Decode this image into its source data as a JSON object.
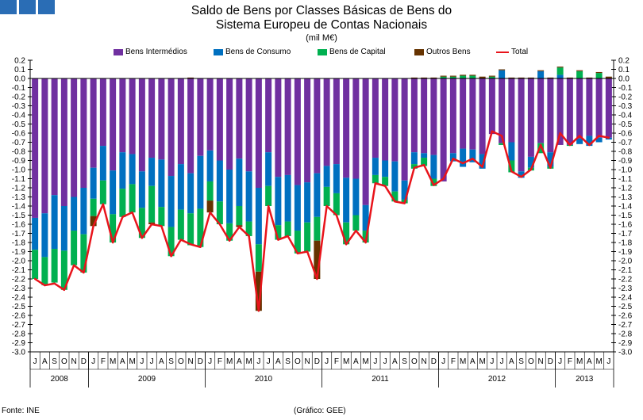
{
  "header": {
    "title_line1": "Saldo de Bens por Classes Básicas de Bens do",
    "title_line2": "Sistema Europeu de Contas Nacionais",
    "unit": "(mil M€)"
  },
  "footer": {
    "source": "Fonte: INE",
    "credit": "(Gráfico: GEE)"
  },
  "chart_data": {
    "type": "bar",
    "stacked": true,
    "title": "Saldo de Bens por Classes Básicas de Bens do Sistema Europeu de Contas Nacionais",
    "ylabel": "(mil M€)",
    "ylim": [
      -3.0,
      0.2
    ],
    "ytick_step": 0.1,
    "legend_position": "top",
    "categories": [
      "J",
      "A",
      "S",
      "O",
      "N",
      "D",
      "J",
      "F",
      "M",
      "A",
      "M",
      "J",
      "J",
      "A",
      "S",
      "O",
      "N",
      "D",
      "J",
      "F",
      "M",
      "A",
      "M",
      "J",
      "J",
      "A",
      "S",
      "O",
      "N",
      "D",
      "J",
      "F",
      "M",
      "A",
      "M",
      "J",
      "J",
      "A",
      "S",
      "O",
      "N",
      "D",
      "J",
      "F",
      "M",
      "A",
      "M",
      "J",
      "J",
      "A",
      "S",
      "O",
      "N",
      "D",
      "J",
      "F",
      "M",
      "A",
      "M",
      "J"
    ],
    "year_groups": [
      {
        "label": "2008",
        "count": 6
      },
      {
        "label": "2009",
        "count": 12
      },
      {
        "label": "2010",
        "count": 12
      },
      {
        "label": "2011",
        "count": 12
      },
      {
        "label": "2012",
        "count": 12
      },
      {
        "label": "2013",
        "count": 6
      }
    ],
    "series": [
      {
        "name": "Bens Intermédios",
        "color": "#7030a0",
        "values": [
          -1.53,
          -1.48,
          -1.28,
          -1.4,
          -1.3,
          -1.2,
          -0.98,
          -0.74,
          -1.01,
          -0.81,
          -0.83,
          -1.02,
          -0.87,
          -0.89,
          -1.07,
          -0.94,
          -1.04,
          -0.85,
          -0.79,
          -0.9,
          -1.0,
          -0.88,
          -1.02,
          -1.2,
          -0.81,
          -1.08,
          -1.06,
          -1.17,
          -1.14,
          -1.04,
          -0.96,
          -0.94,
          -1.09,
          -1.1,
          -1.39,
          -0.87,
          -0.9,
          -0.91,
          -1.12,
          -0.81,
          -0.82,
          -0.84,
          -1.13,
          -0.82,
          -0.77,
          -0.78,
          -0.83,
          -0.61,
          -0.71,
          -0.7,
          -1.02,
          -0.86,
          -0.71,
          -0.81,
          -0.73,
          -0.73,
          -0.66,
          -0.63,
          -0.65,
          -0.65
        ]
      },
      {
        "name": "Bens de Consumo",
        "color": "#0070c0",
        "values": [
          -0.35,
          -0.48,
          -0.59,
          -0.49,
          -0.37,
          -0.51,
          -0.34,
          -0.38,
          -0.48,
          -0.4,
          -0.33,
          -0.4,
          -0.31,
          -0.52,
          -0.56,
          -0.5,
          -0.44,
          -0.58,
          -0.34,
          -0.45,
          -0.59,
          -0.52,
          -0.55,
          -0.62,
          -0.37,
          -0.53,
          -0.51,
          -0.5,
          -0.44,
          -0.48,
          -0.23,
          -0.32,
          -0.49,
          -0.4,
          -0.28,
          -0.19,
          -0.18,
          -0.33,
          -0.21,
          -0.13,
          -0.05,
          -0.26,
          0,
          -0.09,
          -0.2,
          -0.14,
          -0.16,
          0,
          0.09,
          -0.2,
          -0.07,
          -0.12,
          0.08,
          -0.16,
          0.04,
          0,
          -0.06,
          -0.11,
          -0.05,
          -0.02
        ]
      },
      {
        "name": "Bens de Capital",
        "color": "#00b050",
        "values": [
          -0.32,
          -0.31,
          -0.37,
          -0.43,
          -0.38,
          -0.42,
          -0.19,
          -0.26,
          -0.31,
          -0.31,
          -0.31,
          -0.33,
          -0.4,
          -0.21,
          -0.32,
          -0.33,
          -0.35,
          -0.42,
          -0.21,
          -0.25,
          -0.19,
          -0.21,
          -0.16,
          -0.3,
          -0.22,
          -0.16,
          -0.16,
          -0.25,
          -0.32,
          -0.26,
          -0.21,
          -0.24,
          -0.24,
          -0.17,
          -0.13,
          -0.09,
          -0.1,
          -0.11,
          -0.04,
          -0.05,
          -0.09,
          -0.08,
          0.02,
          0.02,
          0.03,
          0.03,
          0,
          0.02,
          -0.02,
          -0.13,
          0,
          -0.03,
          -0.11,
          -0.02,
          0.08,
          -0.01,
          0.08,
          0,
          0.06,
          0
        ]
      },
      {
        "name": "Outros Bens",
        "color": "#663300",
        "values": [
          0,
          0,
          0,
          0,
          0,
          0,
          -0.11,
          0,
          0,
          0,
          0,
          0,
          -0.02,
          0,
          0,
          0,
          0.01,
          0,
          -0.13,
          0,
          0,
          -0.02,
          0,
          -0.43,
          0,
          0,
          0,
          0,
          0,
          -0.42,
          0,
          0,
          0,
          0,
          0,
          0,
          0,
          0,
          0,
          0.01,
          0.01,
          0.01,
          0.01,
          0.01,
          0.01,
          0.01,
          0.02,
          0.01,
          0.01,
          0.01,
          0.01,
          0.01,
          0.01,
          0.01,
          0.01,
          0.01,
          0.01,
          0.01,
          0.01,
          0.02
        ]
      }
    ],
    "total": {
      "name": "Total",
      "color": "#e8141b",
      "values": [
        -2.2,
        -2.27,
        -2.25,
        -2.32,
        -2.05,
        -2.13,
        -1.62,
        -1.38,
        -1.8,
        -1.52,
        -1.47,
        -1.75,
        -1.6,
        -1.62,
        -1.95,
        -1.77,
        -1.82,
        -1.85,
        -1.47,
        -1.6,
        -1.78,
        -1.63,
        -1.73,
        -2.55,
        -1.4,
        -1.77,
        -1.73,
        -1.92,
        -1.9,
        -2.2,
        -1.4,
        -1.5,
        -1.82,
        -1.67,
        -1.8,
        -1.15,
        -1.18,
        -1.35,
        -1.37,
        -0.98,
        -0.95,
        -1.17,
        -1.1,
        -0.88,
        -0.93,
        -0.88,
        -0.97,
        -0.58,
        -0.63,
        -1.02,
        -1.08,
        -1.0,
        -0.73,
        -0.98,
        -0.6,
        -0.73,
        -0.63,
        -0.73,
        -0.63,
        -0.65
      ]
    }
  }
}
